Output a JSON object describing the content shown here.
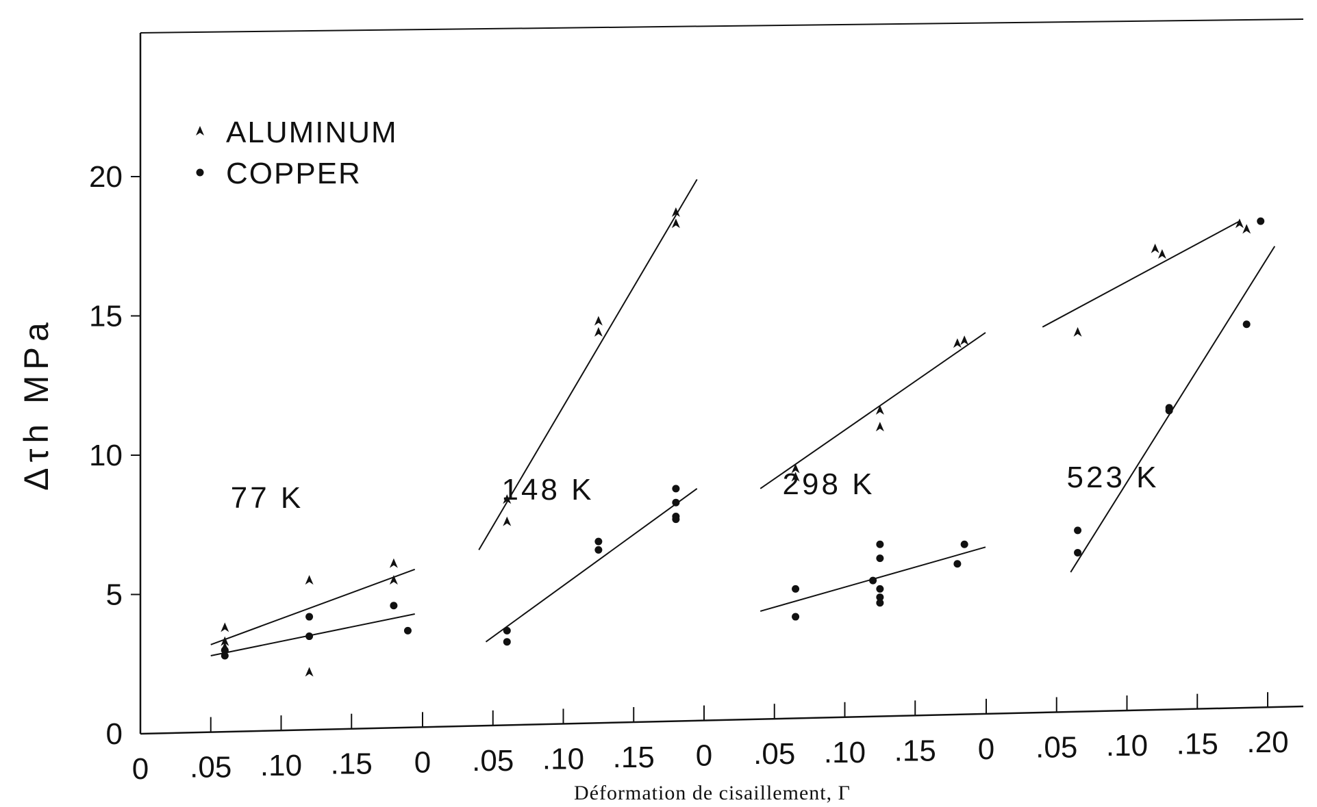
{
  "chart_data": {
    "type": "scatter",
    "title": "",
    "ylabel": "Δτh  MPa",
    "xlabel": "Déformation de cisaillement, Γ",
    "ylim": [
      0,
      25
    ],
    "yticks": [
      "0",
      "5",
      "10",
      "15",
      "20"
    ],
    "grid": false,
    "legend": {
      "placement": "top-left",
      "entries": [
        {
          "symbol": "triangle",
          "label": "ALUMINUM"
        },
        {
          "symbol": "dot",
          "label": "COPPER"
        }
      ]
    },
    "panels": [
      {
        "temperature": "77 K",
        "xticks": [
          "0",
          ".05",
          ".10",
          ".15"
        ],
        "xlim": [
          0,
          0.2
        ],
        "aluminum": {
          "points": [
            [
              0.06,
              3.8
            ],
            [
              0.06,
              3.3
            ],
            [
              0.06,
              3.1
            ],
            [
              0.12,
              5.5
            ],
            [
              0.12,
              2.2
            ],
            [
              0.18,
              6.1
            ],
            [
              0.18,
              5.5
            ]
          ],
          "fit": [
            [
              0.05,
              3.2
            ],
            [
              0.195,
              5.9
            ]
          ]
        },
        "copper": {
          "points": [
            [
              0.06,
              3.0
            ],
            [
              0.06,
              2.8
            ],
            [
              0.12,
              4.2
            ],
            [
              0.12,
              3.5
            ],
            [
              0.18,
              4.6
            ],
            [
              0.19,
              3.7
            ]
          ],
          "fit": [
            [
              0.05,
              2.8
            ],
            [
              0.195,
              4.3
            ]
          ]
        }
      },
      {
        "temperature": "148 K",
        "xticks": [
          "0",
          ".05",
          ".10",
          ".15"
        ],
        "xlim": [
          0,
          0.2
        ],
        "aluminum": {
          "points": [
            [
              0.06,
              8.4
            ],
            [
              0.06,
              7.6
            ],
            [
              0.125,
              14.8
            ],
            [
              0.125,
              14.4
            ],
            [
              0.18,
              18.7
            ],
            [
              0.18,
              18.3
            ]
          ],
          "fit": [
            [
              0.04,
              6.6
            ],
            [
              0.195,
              19.9
            ]
          ]
        },
        "copper": {
          "points": [
            [
              0.06,
              3.7
            ],
            [
              0.06,
              3.3
            ],
            [
              0.125,
              6.9
            ],
            [
              0.125,
              6.6
            ],
            [
              0.18,
              8.8
            ],
            [
              0.18,
              8.3
            ],
            [
              0.18,
              7.8
            ],
            [
              0.18,
              7.7
            ]
          ],
          "fit": [
            [
              0.045,
              3.3
            ],
            [
              0.195,
              8.8
            ]
          ]
        }
      },
      {
        "temperature": "298 K",
        "xticks": [
          "0",
          ".05",
          ".10",
          ".15"
        ],
        "xlim": [
          0,
          0.2
        ],
        "aluminum": {
          "points": [
            [
              0.065,
              9.5
            ],
            [
              0.065,
              9.2
            ],
            [
              0.125,
              11.6
            ],
            [
              0.125,
              11.0
            ],
            [
              0.18,
              14.0
            ],
            [
              0.185,
              14.1
            ]
          ],
          "fit": [
            [
              0.04,
              8.8
            ],
            [
              0.2,
              14.4
            ]
          ]
        },
        "copper": {
          "points": [
            [
              0.065,
              5.2
            ],
            [
              0.065,
              4.2
            ],
            [
              0.125,
              6.8
            ],
            [
              0.125,
              6.3
            ],
            [
              0.12,
              5.5
            ],
            [
              0.125,
              5.2
            ],
            [
              0.125,
              4.9
            ],
            [
              0.125,
              4.7
            ],
            [
              0.18,
              6.1
            ],
            [
              0.185,
              6.8
            ]
          ],
          "fit": [
            [
              0.04,
              4.4
            ],
            [
              0.2,
              6.7
            ]
          ]
        }
      },
      {
        "temperature": "523 K",
        "xticks": [
          "0",
          ".05",
          ".10",
          ".15",
          ".20"
        ],
        "xlim": [
          0,
          0.2
        ],
        "aluminum": {
          "points": [
            [
              0.065,
              14.4
            ],
            [
              0.12,
              17.4
            ],
            [
              0.125,
              17.2
            ],
            [
              0.18,
              18.3
            ],
            [
              0.185,
              18.1
            ]
          ],
          "fit": [
            [
              0.04,
              14.6
            ],
            [
              0.18,
              18.4
            ]
          ]
        },
        "copper": {
          "points": [
            [
              0.065,
              7.3
            ],
            [
              0.065,
              6.5
            ],
            [
              0.13,
              11.6
            ],
            [
              0.13,
              11.7
            ],
            [
              0.185,
              14.7
            ],
            [
              0.195,
              18.4
            ]
          ],
          "fit": [
            [
              0.06,
              5.8
            ],
            [
              0.205,
              17.5
            ]
          ]
        }
      }
    ]
  }
}
